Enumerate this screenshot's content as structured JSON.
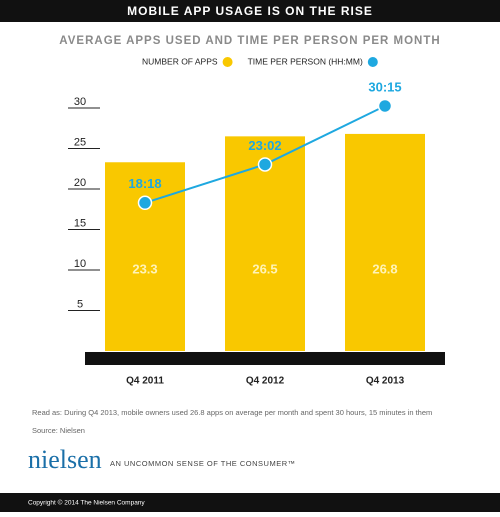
{
  "chart_data": {
    "type": "bar",
    "title": "MOBILE APP USAGE IS ON THE RISE",
    "subtitle": "AVERAGE APPS USED AND TIME PER PERSON PER MONTH",
    "categories": [
      "Q4 2011",
      "Q4 2012",
      "Q4 2013"
    ],
    "series": [
      {
        "name": "NUMBER OF APPS",
        "type": "bar",
        "color": "#f9c800",
        "values": [
          23.3,
          26.5,
          26.8
        ]
      },
      {
        "name": "TIME PER PERSON (HH:MM)",
        "type": "line",
        "color": "#1ea8e0",
        "values": [
          18.3,
          23.03,
          30.25
        ],
        "value_labels": [
          "18:18",
          "23:02",
          "30:15"
        ]
      }
    ],
    "ylim": [
      0,
      30
    ],
    "yticks": [
      5,
      10,
      15,
      20,
      25,
      30
    ],
    "grid": false
  },
  "footer": {
    "note": "Read as: During Q4 2013, mobile owners used 26.8 apps on average per month and spent 30 hours, 15 minutes in them",
    "source": "Source: Nielsen",
    "logo": "nielsen",
    "tagline": "AN UNCOMMON SENSE OF THE CONSUMER™",
    "copyright": "Copyright © 2014 The Nielsen Company"
  }
}
